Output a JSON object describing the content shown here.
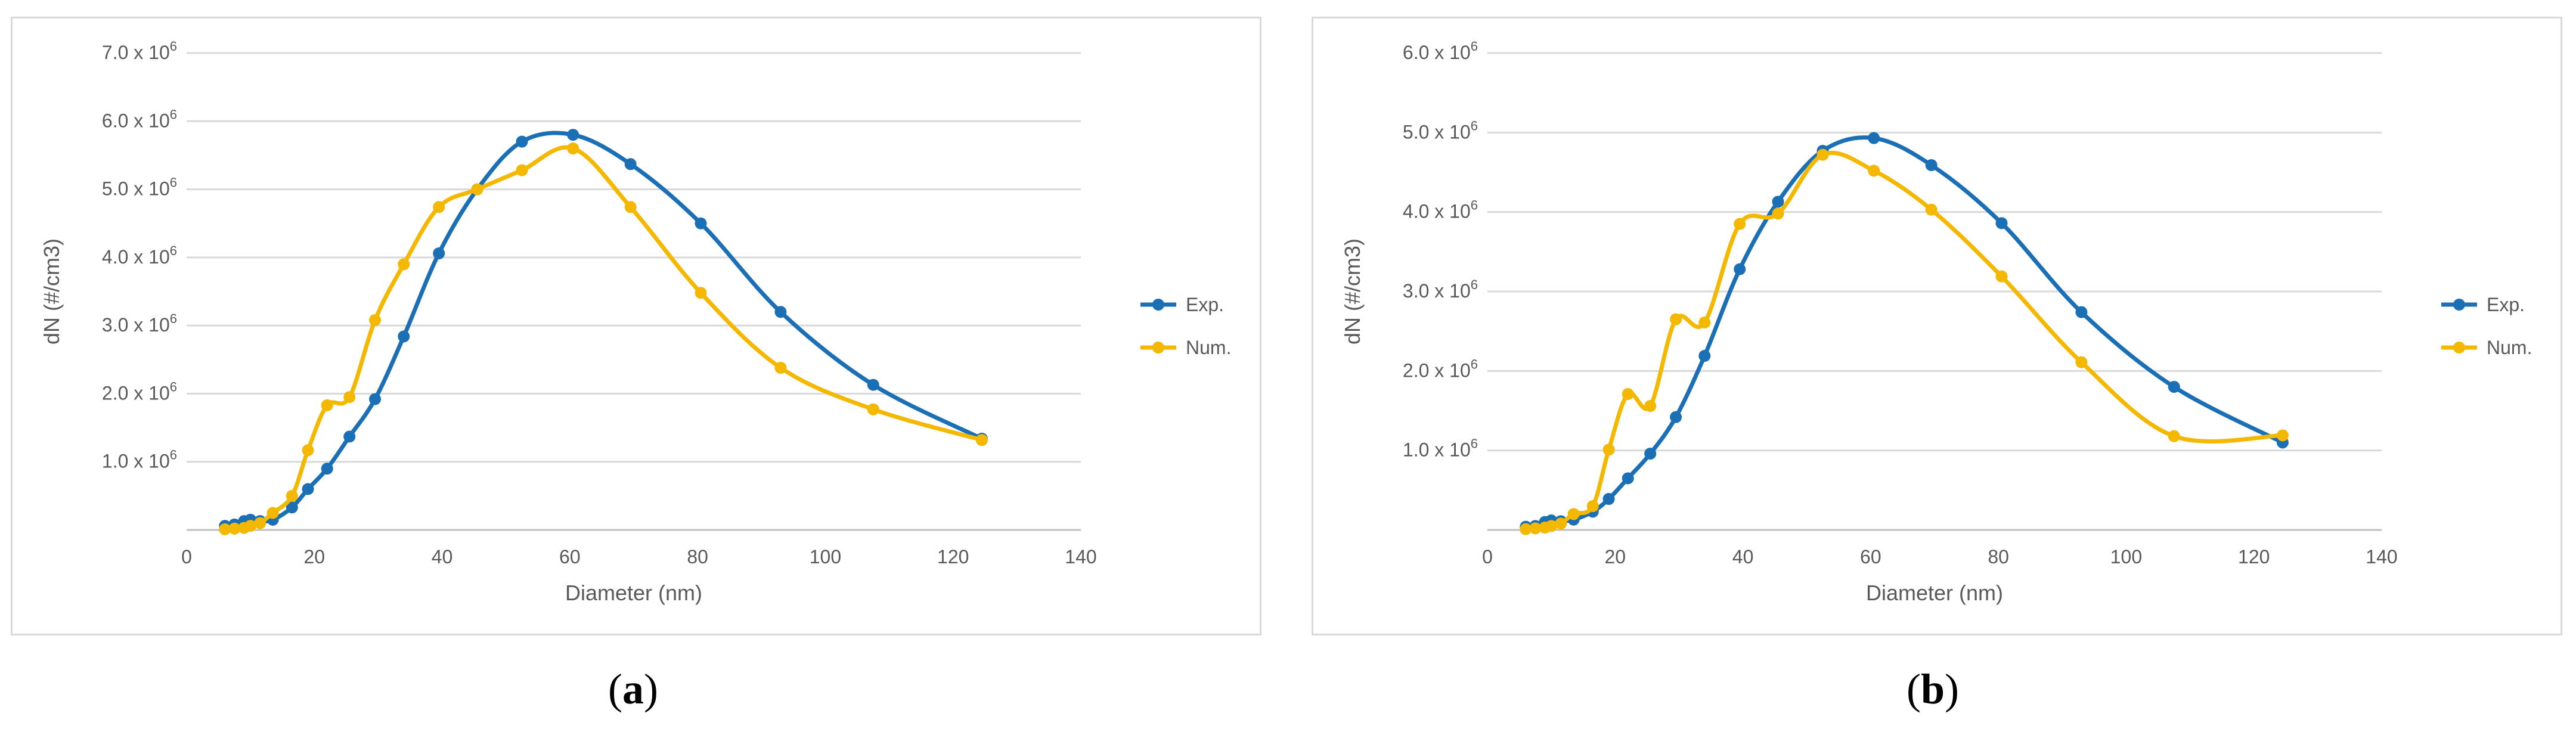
{
  "captions": {
    "a": "a",
    "b": "b"
  },
  "chart_data": [
    {
      "type": "line",
      "panel": "a",
      "xlabel": "Diameter (nm)",
      "ylabel": "dN (#/cm3)",
      "xlim": [
        0,
        140
      ],
      "ylim": [
        0,
        7000000
      ],
      "xticks": [
        0,
        20,
        40,
        60,
        80,
        100,
        120,
        140
      ],
      "yticks": [
        {
          "base": "1.0",
          "value": 1000000
        },
        {
          "base": "2.0",
          "value": 2000000
        },
        {
          "base": "3.0",
          "value": 3000000
        },
        {
          "base": "4.0",
          "value": 4000000
        },
        {
          "base": "5.0",
          "value": 5000000
        },
        {
          "base": "6.0",
          "value": 6000000
        },
        {
          "base": "7.0",
          "value": 7000000
        }
      ],
      "ytick_exp": "x 10",
      "ytick_sup": "6",
      "grid": true,
      "legend_position": "right",
      "series": [
        {
          "name": "Exp.",
          "color": "#1a6fb5",
          "x": [
            6,
            7.5,
            9,
            10,
            11.5,
            13.5,
            16.5,
            19,
            22,
            25.5,
            29.5,
            34,
            39.5,
            45.5,
            52.5,
            60.5,
            69.5,
            80.5,
            93,
            107.5,
            124.5
          ],
          "y": [
            60000,
            80000,
            130000,
            150000,
            130000,
            150000,
            330000,
            600000,
            900000,
            1370000,
            1920000,
            2840000,
            4060000,
            5000000,
            5700000,
            5800000,
            5370000,
            4500000,
            3200000,
            2130000,
            1340000
          ]
        },
        {
          "name": "Num.",
          "color": "#f5b800",
          "x": [
            6,
            7.5,
            9,
            10,
            11.5,
            13.5,
            16.5,
            19,
            22,
            25.5,
            29.5,
            34,
            39.5,
            45.5,
            52.5,
            60.5,
            69.5,
            80.5,
            93,
            107.5,
            124.5
          ],
          "y": [
            10000,
            20000,
            30000,
            60000,
            100000,
            250000,
            500000,
            1170000,
            1830000,
            1950000,
            3080000,
            3900000,
            4740000,
            5000000,
            5280000,
            5600000,
            4740000,
            3480000,
            2380000,
            1770000,
            1320000
          ]
        }
      ]
    },
    {
      "type": "line",
      "panel": "b",
      "xlabel": "Diameter (nm)",
      "ylabel": "dN (#/cm3)",
      "xlim": [
        0,
        140
      ],
      "ylim": [
        0,
        6000000
      ],
      "xticks": [
        0,
        20,
        40,
        60,
        80,
        100,
        120,
        140
      ],
      "yticks": [
        {
          "base": "1.0",
          "value": 1000000
        },
        {
          "base": "2.0",
          "value": 2000000
        },
        {
          "base": "3.0",
          "value": 3000000
        },
        {
          "base": "4.0",
          "value": 4000000
        },
        {
          "base": "5.0",
          "value": 5000000
        },
        {
          "base": "6.0",
          "value": 6000000
        }
      ],
      "ytick_exp": "x 10",
      "ytick_sup": "6",
      "grid": true,
      "legend_position": "right",
      "series": [
        {
          "name": "Exp.",
          "color": "#1a6fb5",
          "x": [
            6,
            7.5,
            9,
            10,
            11.5,
            13.5,
            16.5,
            19,
            22,
            25.5,
            29.5,
            34,
            39.5,
            45.5,
            52.5,
            60.5,
            69.5,
            80.5,
            93,
            107.5,
            124.5
          ],
          "y": [
            40000,
            50000,
            100000,
            120000,
            110000,
            130000,
            230000,
            390000,
            650000,
            960000,
            1420000,
            2190000,
            3280000,
            4130000,
            4770000,
            4930000,
            4590000,
            3860000,
            2740000,
            1800000,
            1100000
          ]
        },
        {
          "name": "Num.",
          "color": "#f5b800",
          "x": [
            6,
            7.5,
            9,
            10,
            11.5,
            13.5,
            16.5,
            19,
            22,
            25.5,
            29.5,
            34,
            39.5,
            45.5,
            52.5,
            60.5,
            69.5,
            80.5,
            93,
            107.5,
            124.5
          ],
          "y": [
            10000,
            20000,
            30000,
            50000,
            80000,
            200000,
            300000,
            1010000,
            1710000,
            1560000,
            2650000,
            2610000,
            3850000,
            3980000,
            4720000,
            4520000,
            4030000,
            3190000,
            2110000,
            1180000,
            1190000
          ]
        }
      ]
    }
  ]
}
